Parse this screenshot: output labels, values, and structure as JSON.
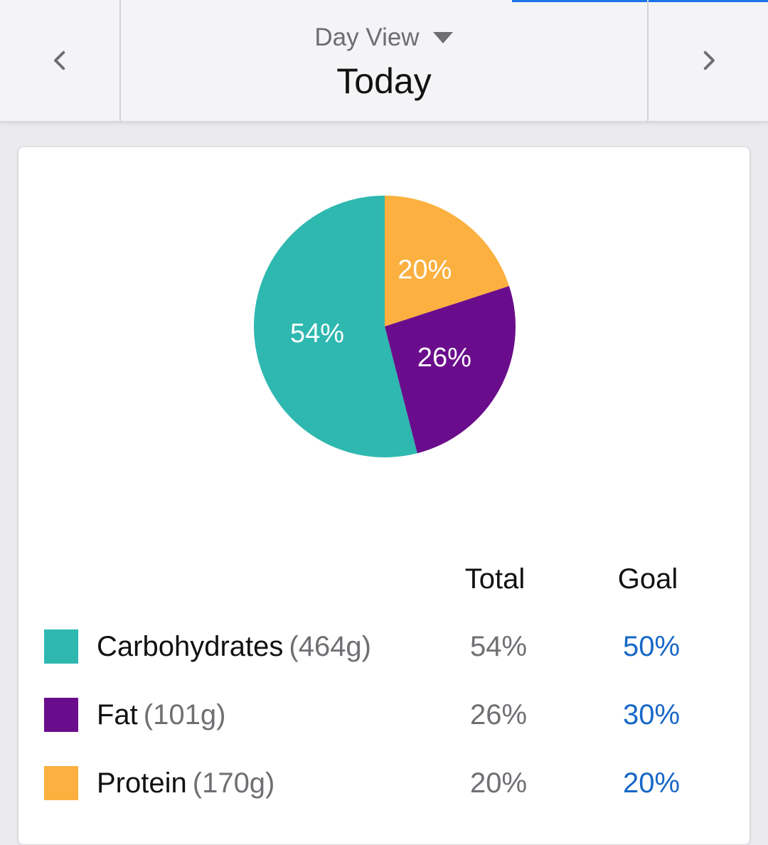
{
  "header": {
    "view_label": "Day View",
    "date_label": "Today",
    "prev_icon": "chevron-left-icon",
    "next_icon": "chevron-right-icon",
    "dropdown_icon": "caret-down-icon"
  },
  "chart_data": {
    "type": "pie",
    "slices": [
      {
        "label": "Carbohydrates",
        "value": 54,
        "display": "54%",
        "color": "#2eb8b0"
      },
      {
        "label": "Fat",
        "value": 26,
        "display": "26%",
        "color": "#6a0d8c"
      },
      {
        "label": "Protein",
        "value": 20,
        "display": "20%",
        "color": "#fbb040"
      }
    ]
  },
  "table": {
    "total_header": "Total",
    "goal_header": "Goal",
    "rows": [
      {
        "name": "Carbohydrates",
        "grams": "(464g)",
        "total": "54%",
        "goal": "50%",
        "color": "#2eb8b0"
      },
      {
        "name": "Fat",
        "grams": "(101g)",
        "total": "26%",
        "goal": "30%",
        "color": "#6a0d8c"
      },
      {
        "name": "Protein",
        "grams": "(170g)",
        "total": "20%",
        "goal": "20%",
        "color": "#fbb040"
      }
    ]
  }
}
